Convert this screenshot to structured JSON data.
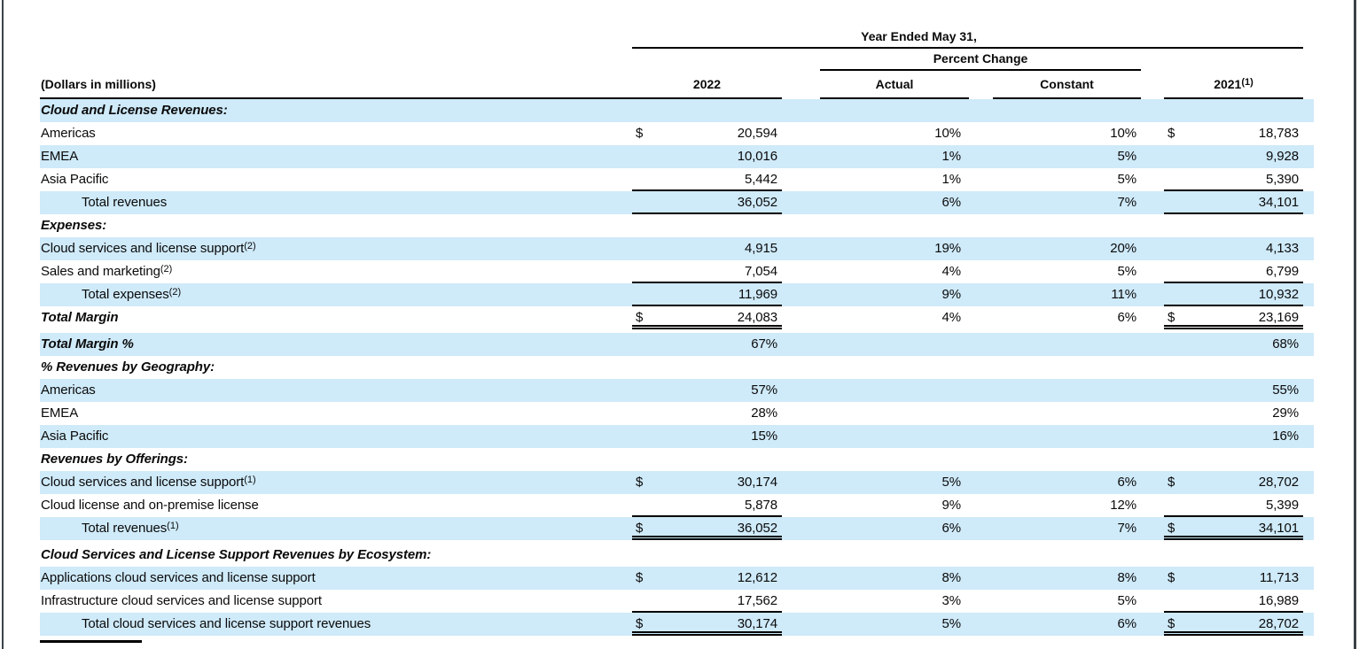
{
  "page": {
    "stripe_color": "#cfeaf9",
    "frame_color": "#3d4247",
    "text_color": "#0a0a0a"
  },
  "table": {
    "year_header": "Year Ended May 31,",
    "percent_change_header": "Percent Change",
    "col_dollars": "(Dollars in millions)",
    "col_2022": "2022",
    "col_actual": "Actual",
    "col_constant": "Constant",
    "col_2021": "2021",
    "col_2021_sup": "(1)",
    "rows": [
      {
        "label": "Cloud and License Revenues:",
        "section": true,
        "bi": true,
        "stripe": true
      },
      {
        "label": "Americas",
        "d1": "$",
        "v1": "20,594",
        "a": "10%",
        "c": "10%",
        "d2": "$",
        "v2": "18,783"
      },
      {
        "label": "EMEA",
        "stripe": true,
        "v1": "10,016",
        "a": "1%",
        "c": "5%",
        "v2": "9,928"
      },
      {
        "label": "Asia Pacific",
        "v1": "5,442",
        "a": "1%",
        "c": "5%",
        "v2": "5,390",
        "border": "single"
      },
      {
        "label": "Total revenues",
        "indent": true,
        "stripe": true,
        "v1": "36,052",
        "a": "6%",
        "c": "7%",
        "v2": "34,101",
        "border": "single"
      },
      {
        "label": "Expenses:",
        "section": true,
        "bi": true
      },
      {
        "label": "Cloud services and license support",
        "sup": "(2)",
        "stripe": true,
        "v1": "4,915",
        "a": "19%",
        "c": "20%",
        "v2": "4,133"
      },
      {
        "label": "Sales and marketing",
        "sup": "(2)",
        "v1": "7,054",
        "a": "4%",
        "c": "5%",
        "v2": "6,799",
        "border": "single"
      },
      {
        "label": "Total expenses",
        "sup": "(2)",
        "indent": true,
        "stripe": true,
        "v1": "11,969",
        "a": "9%",
        "c": "11%",
        "v2": "10,932",
        "border": "single"
      },
      {
        "label": "Total Margin",
        "bi": true,
        "d1": "$",
        "v1": "24,083",
        "a": "4%",
        "c": "6%",
        "d2": "$",
        "v2": "23,169",
        "border": "double"
      },
      {
        "label": "Total Margin %",
        "bi": true,
        "stripe": true,
        "v1": "67%",
        "v2": "68%",
        "gap": true
      },
      {
        "label": "% Revenues by Geography:",
        "section": true,
        "bi": true
      },
      {
        "label": "Americas",
        "stripe": true,
        "v1": "57%",
        "v2": "55%"
      },
      {
        "label": "EMEA",
        "v1": "28%",
        "v2": "29%"
      },
      {
        "label": "Asia Pacific",
        "stripe": true,
        "v1": "15%",
        "v2": "16%"
      },
      {
        "label": "Revenues by Offerings:",
        "section": true,
        "bi": true
      },
      {
        "label": "Cloud services and license support",
        "sup": "(1)",
        "stripe": true,
        "d1": "$",
        "v1": "30,174",
        "a": "5%",
        "c": "6%",
        "d2": "$",
        "v2": "28,702"
      },
      {
        "label": "Cloud license and on-premise license",
        "v1": "5,878",
        "a": "9%",
        "c": "12%",
        "v2": "5,399",
        "border": "single"
      },
      {
        "label": "Total revenues",
        "sup": "(1)",
        "indent": true,
        "stripe": true,
        "d1": "$",
        "v1": "36,052",
        "a": "6%",
        "c": "7%",
        "d2": "$",
        "v2": "34,101",
        "border": "double"
      },
      {
        "label": "Cloud Services and License Support Revenues by Ecosystem:",
        "section": true,
        "bi": true,
        "gap": true
      },
      {
        "label": "Applications cloud services and license support",
        "stripe": true,
        "d1": "$",
        "v1": "12,612",
        "a": "8%",
        "c": "8%",
        "d2": "$",
        "v2": "11,713"
      },
      {
        "label": "Infrastructure cloud services and license support",
        "v1": "17,562",
        "a": "3%",
        "c": "5%",
        "v2": "16,989",
        "border": "single"
      },
      {
        "label": "Total cloud services and license support revenues",
        "indent": true,
        "stripe": true,
        "d1": "$",
        "v1": "30,174",
        "a": "5%",
        "c": "6%",
        "d2": "$",
        "v2": "28,702",
        "border": "double"
      }
    ]
  }
}
